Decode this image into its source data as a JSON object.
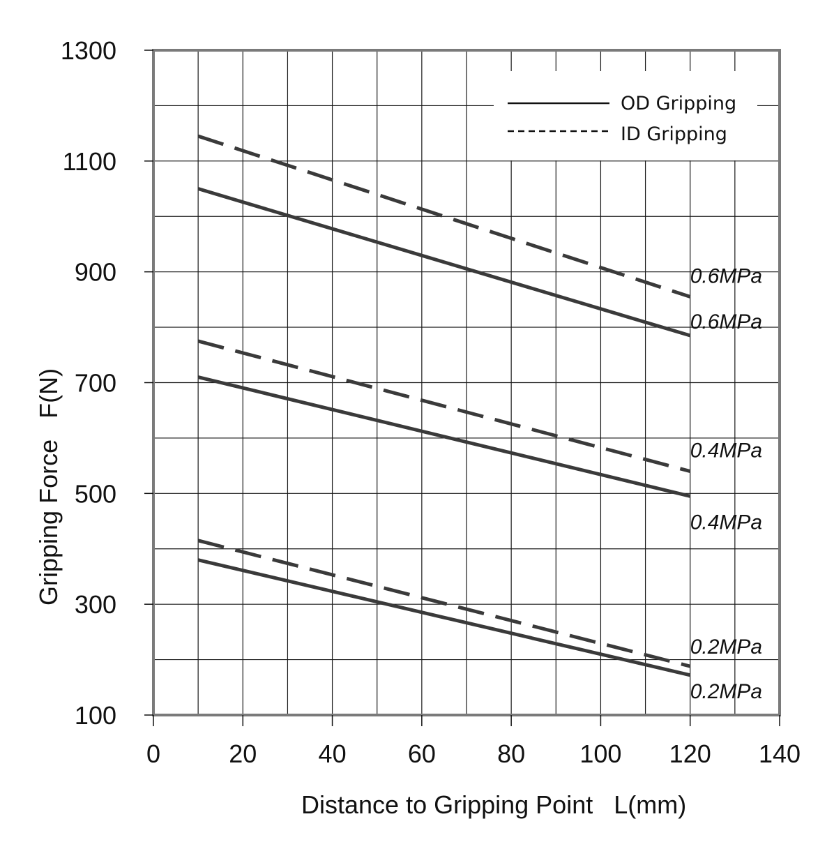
{
  "chart_data": {
    "type": "line",
    "xlabel": "Distance to Gripping Point   L(mm)",
    "ylabel": "Gripping Force   F(N)",
    "xlim": [
      0,
      140
    ],
    "ylim": [
      100,
      1300
    ],
    "x_ticks": [
      0,
      20,
      40,
      60,
      80,
      100,
      120,
      140
    ],
    "y_ticks": [
      100,
      300,
      500,
      700,
      900,
      1100,
      1300
    ],
    "grid": true,
    "x_grid_step": 10,
    "y_grid_step": 100,
    "legend": {
      "position": "top-right",
      "entries": [
        {
          "label": "OD Gripping",
          "style": "solid"
        },
        {
          "label": "ID Gripping",
          "style": "dashed"
        }
      ]
    },
    "series": [
      {
        "group": "ID Gripping",
        "style": "dashed",
        "end_label": "0.6MPa",
        "x": [
          10,
          120
        ],
        "y": [
          1145,
          855
        ]
      },
      {
        "group": "OD Gripping",
        "style": "solid",
        "end_label": "0.6MPa",
        "x": [
          10,
          120
        ],
        "y": [
          1050,
          785
        ]
      },
      {
        "group": "ID Gripping",
        "style": "dashed",
        "end_label": "0.4MPa",
        "x": [
          10,
          120
        ],
        "y": [
          775,
          540
        ]
      },
      {
        "group": "OD Gripping",
        "style": "solid",
        "end_label": "0.4MPa",
        "x": [
          10,
          120
        ],
        "y": [
          710,
          495
        ]
      },
      {
        "group": "ID Gripping",
        "style": "dashed",
        "end_label": "0.2MPa",
        "x": [
          10,
          120
        ],
        "y": [
          415,
          188
        ]
      },
      {
        "group": "OD Gripping",
        "style": "solid",
        "end_label": "0.2MPa",
        "x": [
          10,
          120
        ],
        "y": [
          380,
          172
        ]
      }
    ],
    "colors": {
      "series": "#3a3a3a",
      "grid": "#1a1a1a",
      "frame": "#7a7a7a"
    }
  }
}
